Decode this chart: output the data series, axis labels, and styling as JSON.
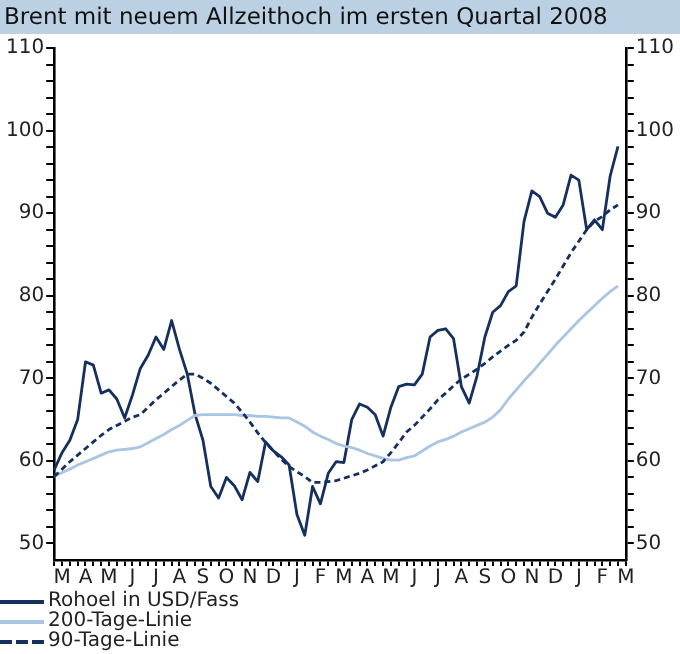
{
  "chart_data": {
    "type": "line",
    "title": "Brent mit neuem Allzeithoch im ersten Quartal 2008",
    "categories": [
      null,
      "M",
      null,
      null,
      "A",
      null,
      null,
      "M",
      null,
      null,
      "J",
      null,
      null,
      "J",
      null,
      null,
      "A",
      null,
      null,
      "S",
      null,
      null,
      "O",
      null,
      null,
      "N",
      null,
      null,
      "D",
      null,
      null,
      "J",
      null,
      null,
      "F",
      null,
      null,
      "M",
      null,
      null,
      "A",
      null,
      null,
      "M",
      null,
      null,
      "J",
      null,
      null,
      "J",
      null,
      null,
      "A",
      null,
      null,
      "S",
      null,
      null,
      "O",
      null,
      null,
      "N",
      null,
      null,
      "D",
      null,
      null,
      "J",
      null,
      null,
      "F",
      null,
      null,
      "M"
    ],
    "ylim": [
      48,
      110
    ],
    "yticks": [
      50,
      {
        "value": 52,
        "label": null
      },
      {
        "value": 54,
        "label": null
      },
      {
        "value": 56,
        "label": null
      },
      {
        "value": 58,
        "label": null
      },
      60,
      {
        "value": 62,
        "label": null
      },
      {
        "value": 64,
        "label": null
      },
      {
        "value": 66,
        "label": null
      },
      {
        "value": 68,
        "label": null
      },
      70,
      {
        "value": 72,
        "label": null
      },
      {
        "value": 74,
        "label": null
      },
      {
        "value": 76,
        "label": null
      },
      {
        "value": 78,
        "label": null
      },
      80,
      {
        "value": 82,
        "label": null
      },
      {
        "value": 84,
        "label": null
      },
      {
        "value": 86,
        "label": null
      },
      {
        "value": 88,
        "label": null
      },
      90,
      {
        "value": 92,
        "label": null
      },
      {
        "value": 94,
        "label": null
      },
      {
        "value": 96,
        "label": null
      },
      {
        "value": 98,
        "label": null
      },
      100,
      {
        "value": 102,
        "label": null
      },
      {
        "value": 104,
        "label": null
      },
      {
        "value": 106,
        "label": null
      },
      {
        "value": 108,
        "label": null
      },
      110
    ],
    "y2lim": [
      48,
      110
    ],
    "y2ticks": [
      50,
      {
        "value": 52,
        "label": null
      },
      {
        "value": 54,
        "label": null
      },
      {
        "value": 56,
        "label": null
      },
      {
        "value": 58,
        "label": null
      },
      60,
      {
        "value": 62,
        "label": null
      },
      {
        "value": 64,
        "label": null
      },
      {
        "value": 66,
        "label": null
      },
      {
        "value": 68,
        "label": null
      },
      70,
      {
        "value": 72,
        "label": null
      },
      {
        "value": 74,
        "label": null
      },
      {
        "value": 76,
        "label": null
      },
      {
        "value": 78,
        "label": null
      },
      80,
      {
        "value": 82,
        "label": null
      },
      {
        "value": 84,
        "label": null
      },
      {
        "value": 86,
        "label": null
      },
      {
        "value": 88,
        "label": null
      },
      90,
      {
        "value": 92,
        "label": null
      },
      {
        "value": 94,
        "label": null
      },
      {
        "value": 96,
        "label": null
      },
      {
        "value": 98,
        "label": null
      },
      100,
      {
        "value": 102,
        "label": null
      },
      {
        "value": 104,
        "label": null
      },
      {
        "value": 106,
        "label": null
      },
      {
        "value": 108,
        "label": null
      },
      110
    ],
    "grid": false,
    "legend": "bottom",
    "marker": "none",
    "series": [
      {
        "name": "Rohoel in USD/Fass",
        "color": "#15305e",
        "line_style": "solid",
        "values": [
          58.9,
          61,
          62.5,
          65,
          72,
          71.6,
          68.2,
          68.6,
          67.5,
          65.2,
          68,
          71.2,
          72.8,
          75,
          73.5,
          77,
          73.5,
          70.5,
          65.6,
          62.5,
          56.9,
          55.5,
          58,
          57,
          55.3,
          58.6,
          57.5,
          62.3,
          61.2,
          60.5,
          59.5,
          53.5,
          51,
          56.9,
          54.8,
          58.5,
          59.9,
          59.8,
          65,
          66.9,
          66.5,
          65.6,
          63,
          66.5,
          69,
          69.3,
          69.2,
          70.5,
          75,
          75.8,
          76,
          74.8,
          69,
          67,
          70.3,
          75,
          78,
          78.8,
          80.5,
          81.2,
          89,
          92.7,
          92,
          90,
          89.5,
          91,
          94.6,
          94,
          88,
          89.2,
          88,
          94.5,
          98.1,
          null
        ]
      },
      {
        "name": "200-Tage-Linie",
        "color": "#a9c5e3",
        "line_style": "solid",
        "values": [
          58.1,
          58.6,
          59,
          59.5,
          59.9,
          60.3,
          60.7,
          61.1,
          61.3,
          61.4,
          61.5,
          61.7,
          62.2,
          62.7,
          63.2,
          63.8,
          64.3,
          64.9,
          65.5,
          65.6,
          65.6,
          65.6,
          65.6,
          65.6,
          65.5,
          65.5,
          65.4,
          65.4,
          65.3,
          65.2,
          65.2,
          64.7,
          64.2,
          63.5,
          63,
          62.6,
          62.1,
          61.8,
          61.6,
          61.3,
          60.9,
          60.6,
          60.3,
          60.1,
          60.1,
          60.4,
          60.6,
          61.2,
          61.8,
          62.3,
          62.6,
          63,
          63.5,
          63.9,
          64.3,
          64.7,
          65.3,
          66.2,
          67.5,
          68.6,
          69.7,
          70.7,
          71.8,
          72.9,
          74,
          75,
          76,
          77,
          77.9,
          78.8,
          79.7,
          80.5,
          81.2,
          null
        ]
      },
      {
        "name": "90-Tage-Linie",
        "color": "#15305e",
        "line_style": "dashed",
        "values": [
          58.1,
          59,
          59.9,
          60.7,
          61.5,
          62.3,
          63.1,
          63.8,
          64.3,
          64.8,
          65.3,
          65.6,
          66.5,
          67.4,
          68.2,
          69,
          69.8,
          70.5,
          70.5,
          70,
          69.4,
          68.6,
          67.8,
          67,
          65.9,
          64.7,
          63.4,
          62.2,
          61.2,
          60.2,
          59.3,
          58.7,
          58.1,
          57.4,
          57.4,
          57.5,
          57.6,
          57.9,
          58.2,
          58.5,
          58.9,
          59.4,
          59.9,
          61,
          62.2,
          63.5,
          64.3,
          65.3,
          66.3,
          67.4,
          68.2,
          69.1,
          69.9,
          70.5,
          71.1,
          71.8,
          72.6,
          73.3,
          74,
          74.6,
          75.6,
          77.4,
          79,
          80.5,
          82,
          83.6,
          85.2,
          86.6,
          88,
          89,
          89.6,
          90.4,
          91,
          null
        ]
      }
    ]
  }
}
